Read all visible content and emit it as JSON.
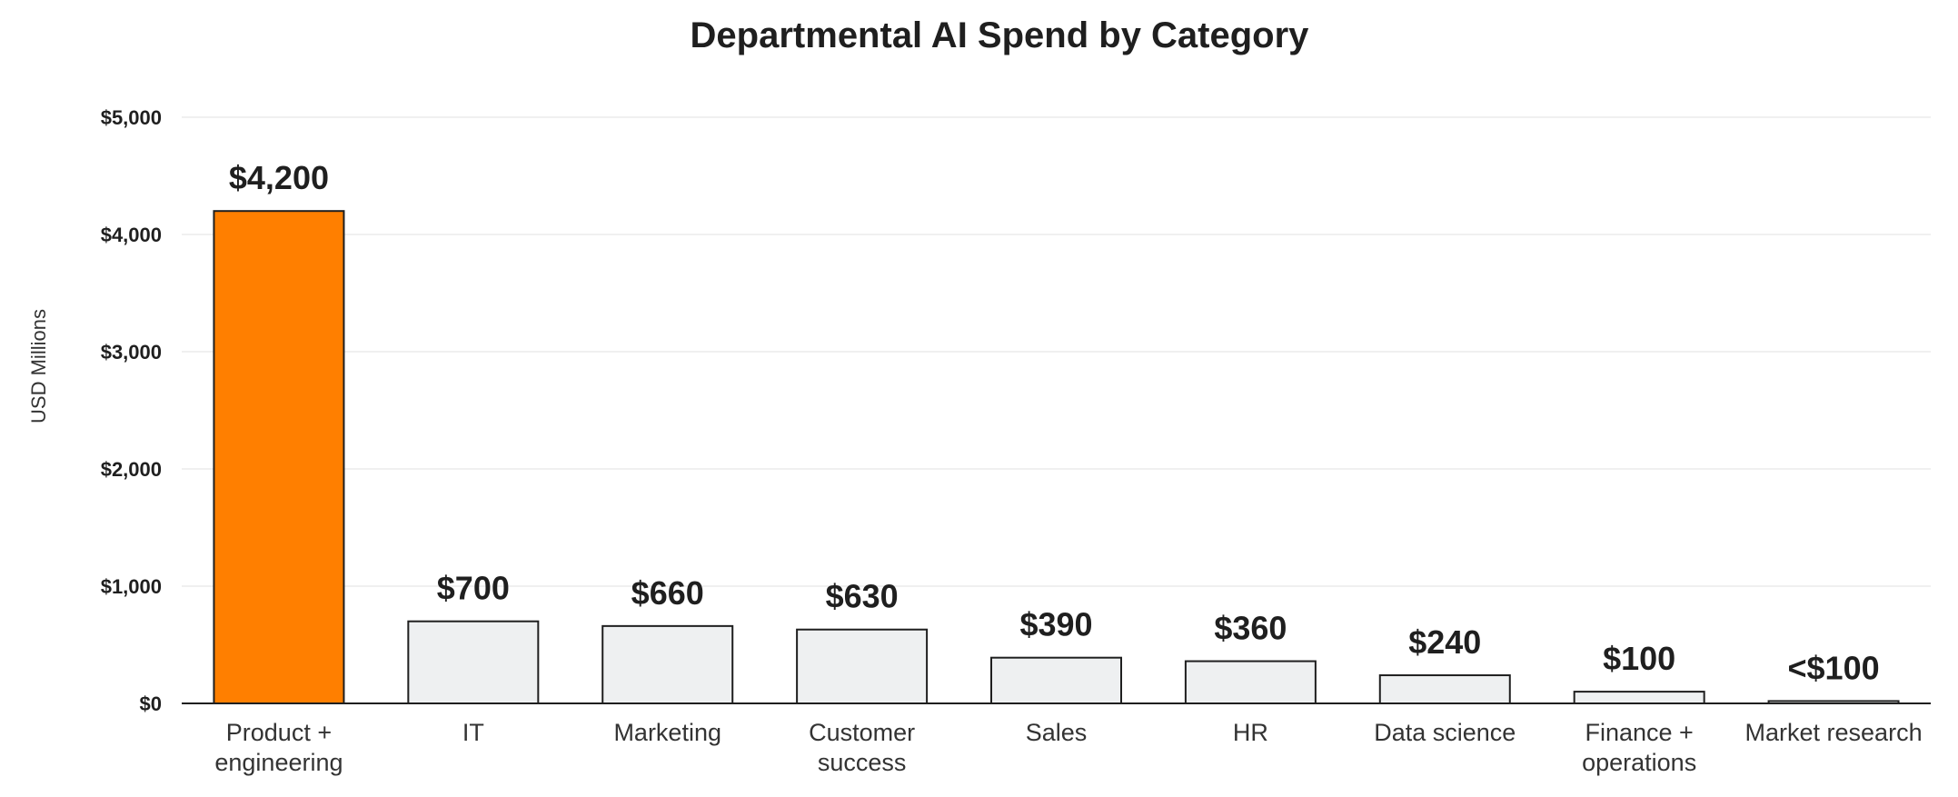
{
  "chart_data": {
    "type": "bar",
    "title": "Departmental AI Spend by Category",
    "xlabel": "",
    "ylabel": "USD Millions",
    "ylim": [
      0,
      5000
    ],
    "yticks": [
      0,
      1000,
      2000,
      3000,
      4000,
      5000
    ],
    "ytick_labels": [
      "$0",
      "$1,000",
      "$2,000",
      "$3,000",
      "$4,000",
      "$5,000"
    ],
    "grid": true,
    "categories": [
      [
        "Product +",
        "engineering"
      ],
      [
        "IT"
      ],
      [
        "Marketing"
      ],
      [
        "Customer",
        "success"
      ],
      [
        "Sales"
      ],
      [
        "HR"
      ],
      [
        "Data science"
      ],
      [
        "Finance +",
        "operations"
      ],
      [
        "Market research"
      ]
    ],
    "values": [
      4200,
      700,
      660,
      630,
      390,
      360,
      240,
      100,
      20
    ],
    "data_labels": [
      "$4,200",
      "$700",
      "$660",
      "$630",
      "$390",
      "$360",
      "$240",
      "$100",
      "<$100"
    ],
    "colors": {
      "highlight": "#FF7F00",
      "default": "#EEF0F1",
      "outline": "#1F1F1F"
    }
  }
}
